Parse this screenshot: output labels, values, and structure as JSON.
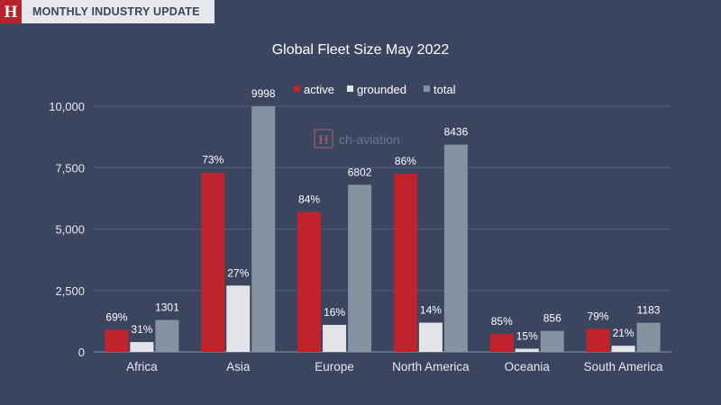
{
  "header": {
    "logo_letter": "H",
    "label": "MONTHLY INDUSTRY UPDATE"
  },
  "watermark": {
    "letter": "H",
    "text": "ch-aviation"
  },
  "colors": {
    "background": "#3c4560",
    "active": "#c1232c",
    "grounded": "#e2e4e8",
    "total": "#8592a1"
  },
  "chart_data": {
    "type": "bar",
    "title": "Global Fleet Size May 2022",
    "xlabel": "",
    "ylabel": "",
    "ylim": [
      0,
      10000
    ],
    "yticks": [
      0,
      2500,
      5000,
      7500,
      10000
    ],
    "ytick_labels": [
      "0",
      "2,500",
      "5,000",
      "7,500",
      "10,000"
    ],
    "grid": true,
    "legend_position": "top-center",
    "categories": [
      "Africa",
      "Asia",
      "Europe",
      "North America",
      "Oceania",
      "South America"
    ],
    "series": [
      {
        "name": "active",
        "color": "#c1232c",
        "values": [
          900,
          7300,
          5700,
          7250,
          730,
          935
        ],
        "labels": [
          "69%",
          "73%",
          "84%",
          "86%",
          "85%",
          "79%"
        ]
      },
      {
        "name": "grounded",
        "color": "#e2e4e8",
        "values": [
          400,
          2700,
          1100,
          1190,
          130,
          250
        ],
        "labels": [
          "31%",
          "27%",
          "16%",
          "14%",
          "15%",
          "21%"
        ]
      },
      {
        "name": "total",
        "color": "#8592a1",
        "values": [
          1301,
          9998,
          6802,
          8436,
          856,
          1183
        ],
        "labels": [
          "1301",
          "9998",
          "6802",
          "8436",
          "856",
          "1183"
        ]
      }
    ]
  }
}
